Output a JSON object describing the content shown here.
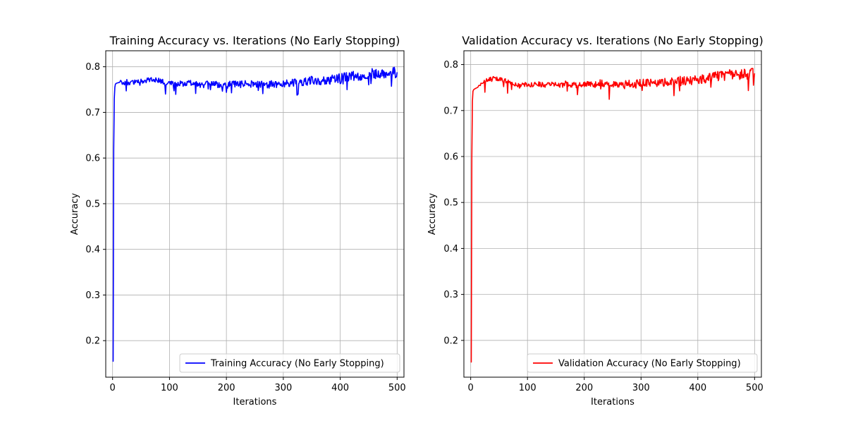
{
  "chart_data": [
    {
      "type": "line",
      "title": "Training Accuracy vs. Iterations (No Early Stopping)",
      "xlabel": "Iterations",
      "ylabel": "Accuracy",
      "xlim": [
        -12,
        512
      ],
      "ylim": [
        0.12,
        0.835
      ],
      "xticks": [
        0,
        100,
        200,
        300,
        400,
        500
      ],
      "yticks": [
        0.2,
        0.3,
        0.4,
        0.5,
        0.6,
        0.7,
        0.8
      ],
      "grid": true,
      "legend_position": "lower-right",
      "color": "#0000ff",
      "series": [
        {
          "name": "Training Accuracy (No Early Stopping)",
          "x": [
            0,
            1,
            2,
            3,
            4,
            5,
            7,
            10,
            15,
            20,
            25,
            30,
            40,
            50,
            60,
            70,
            80,
            90,
            100,
            110,
            120,
            130,
            140,
            150,
            160,
            170,
            180,
            190,
            200,
            210,
            220,
            230,
            240,
            250,
            260,
            270,
            280,
            290,
            300,
            310,
            320,
            330,
            340,
            350,
            360,
            370,
            380,
            390,
            400,
            410,
            420,
            430,
            440,
            450,
            460,
            470,
            480,
            490,
            500
          ],
          "y": [
            0.155,
            0.155,
            0.62,
            0.73,
            0.755,
            0.762,
            0.764,
            0.765,
            0.767,
            0.763,
            0.768,
            0.765,
            0.767,
            0.768,
            0.77,
            0.773,
            0.77,
            0.767,
            0.765,
            0.762,
            0.765,
            0.763,
            0.765,
            0.762,
            0.758,
            0.765,
            0.762,
            0.76,
            0.758,
            0.764,
            0.76,
            0.762,
            0.764,
            0.76,
            0.762,
            0.758,
            0.762,
            0.76,
            0.765,
            0.763,
            0.767,
            0.765,
            0.768,
            0.77,
            0.769,
            0.772,
            0.77,
            0.774,
            0.776,
            0.777,
            0.779,
            0.78,
            0.782,
            0.784,
            0.785,
            0.784,
            0.786,
            0.787,
            0.788
          ]
        }
      ]
    },
    {
      "type": "line",
      "title": "Validation Accuracy vs. Iterations (No Early Stopping)",
      "xlabel": "Iterations",
      "ylabel": "Accuracy",
      "xlim": [
        -12,
        512
      ],
      "ylim": [
        0.12,
        0.83
      ],
      "xticks": [
        0,
        100,
        200,
        300,
        400,
        500
      ],
      "yticks": [
        0.2,
        0.3,
        0.4,
        0.5,
        0.6,
        0.7,
        0.8
      ],
      "grid": true,
      "legend_position": "lower-right",
      "color": "#ff0000",
      "series": [
        {
          "name": "Validation Accuracy (No Early Stopping)",
          "x": [
            0,
            1,
            2,
            3,
            4,
            5,
            7,
            10,
            15,
            20,
            25,
            30,
            40,
            50,
            60,
            70,
            80,
            90,
            100,
            110,
            120,
            130,
            140,
            150,
            160,
            170,
            180,
            190,
            200,
            210,
            220,
            230,
            240,
            250,
            260,
            270,
            280,
            290,
            300,
            310,
            320,
            330,
            340,
            350,
            360,
            370,
            380,
            390,
            400,
            410,
            420,
            430,
            440,
            450,
            460,
            470,
            480,
            490,
            500
          ],
          "y": [
            0.153,
            0.153,
            0.6,
            0.72,
            0.742,
            0.745,
            0.747,
            0.749,
            0.752,
            0.758,
            0.765,
            0.768,
            0.77,
            0.768,
            0.765,
            0.76,
            0.757,
            0.756,
            0.757,
            0.755,
            0.758,
            0.756,
            0.757,
            0.758,
            0.755,
            0.76,
            0.757,
            0.755,
            0.756,
            0.758,
            0.757,
            0.76,
            0.756,
            0.758,
            0.757,
            0.756,
            0.76,
            0.757,
            0.761,
            0.759,
            0.762,
            0.76,
            0.762,
            0.763,
            0.762,
            0.765,
            0.764,
            0.766,
            0.768,
            0.77,
            0.772,
            0.773,
            0.775,
            0.777,
            0.778,
            0.777,
            0.779,
            0.78,
            0.781
          ]
        }
      ]
    }
  ]
}
